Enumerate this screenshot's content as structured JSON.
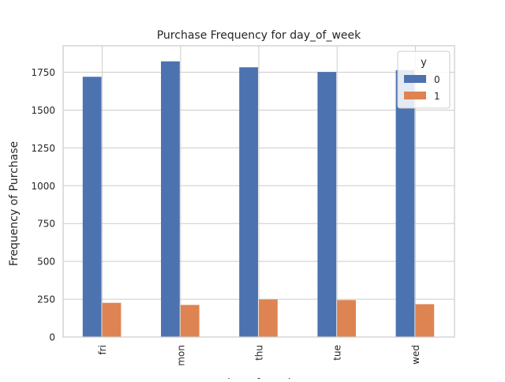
{
  "chart_data": {
    "type": "bar",
    "title": "Purchase Frequency for day_of_week",
    "xlabel": "day_of_week",
    "ylabel": "Frequency of Purchase",
    "categories": [
      "fri",
      "mon",
      "thu",
      "tue",
      "wed"
    ],
    "ylim": [
      0,
      1925
    ],
    "yticks": [
      0,
      250,
      500,
      750,
      1000,
      1250,
      1500,
      1750
    ],
    "grid": true,
    "legend": {
      "title": "y",
      "placement": "top-right"
    },
    "series": [
      {
        "name": "0",
        "color": "#4c72b0",
        "values": [
          1720,
          1822,
          1783,
          1752,
          1764
        ]
      },
      {
        "name": "1",
        "color": "#dd8452",
        "values": [
          226,
          212,
          248,
          244,
          217
        ]
      }
    ]
  }
}
